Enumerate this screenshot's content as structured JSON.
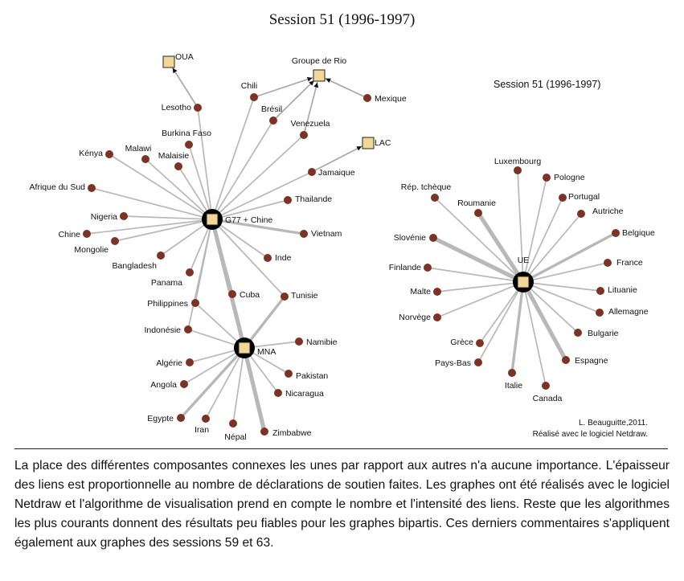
{
  "title": "Session 51 (1996-1997)",
  "inner_title": "Session 51 (1996-1997)",
  "credits": [
    "L. Beauguitte,2011.",
    "Réalisé avec le logiciel Netdraw."
  ],
  "caption": "La place des différentes composantes connexes les unes par rapport aux autres n'a aucune importance. L'épaisseur des liens est proportionnelle au nombre de déclarations de soutien faites. Les graphes ont été réalisés avec le logiciel Netdraw et l'algorithme de visualisation prend en compte le nombre et l'intensité des liens. Reste que les algorithmes les plus courants donnent des résultats peu fiables pour les graphes bipartis. Ces derniers commentaires s'appliquent également aux graphes des sessions 59 et 63.",
  "colors": {
    "country": "#7a3324",
    "group_fill": "#f2d898",
    "edge": "#b8b8b8",
    "hub": "#000000"
  },
  "nodes": [
    {
      "id": "G77",
      "label": "G77 + Chine",
      "type": "group"
    },
    {
      "id": "MNA",
      "label": "MNA",
      "type": "group"
    },
    {
      "id": "UE",
      "label": "UE",
      "type": "group"
    },
    {
      "id": "OUA",
      "label": "OUA",
      "type": "group"
    },
    {
      "id": "GRIO",
      "label": "Groupe de Rio",
      "type": "group"
    },
    {
      "id": "LAC",
      "label": "LAC",
      "type": "group"
    },
    {
      "id": "lesotho",
      "label": "Lesotho",
      "type": "country"
    },
    {
      "id": "chili",
      "label": "Chili",
      "type": "country"
    },
    {
      "id": "bresil",
      "label": "Brésil",
      "type": "country"
    },
    {
      "id": "venezuela",
      "label": "Venezuela",
      "type": "country"
    },
    {
      "id": "mexique",
      "label": "Mexique",
      "type": "country"
    },
    {
      "id": "burkina",
      "label": "Burkina Faso",
      "type": "country"
    },
    {
      "id": "kenya",
      "label": "Kénya",
      "type": "country"
    },
    {
      "id": "malawi",
      "label": "Malawi",
      "type": "country"
    },
    {
      "id": "malaisie",
      "label": "Malaisie",
      "type": "country"
    },
    {
      "id": "jamaique",
      "label": "Jamaique",
      "type": "country"
    },
    {
      "id": "afsud",
      "label": "Afrique du Sud",
      "type": "country"
    },
    {
      "id": "thailande",
      "label": "Thailande",
      "type": "country"
    },
    {
      "id": "nigeria",
      "label": "Nigeria",
      "type": "country"
    },
    {
      "id": "chine",
      "label": "Chine",
      "type": "country"
    },
    {
      "id": "vietnam",
      "label": "Vietnam",
      "type": "country"
    },
    {
      "id": "mongolie",
      "label": "Mongolie",
      "type": "country"
    },
    {
      "id": "inde",
      "label": "Inde",
      "type": "country"
    },
    {
      "id": "bangladesh",
      "label": "Bangladesh",
      "type": "country"
    },
    {
      "id": "panama",
      "label": "Panama",
      "type": "country"
    },
    {
      "id": "cuba",
      "label": "Cuba",
      "type": "country"
    },
    {
      "id": "tunisie",
      "label": "Tunisie",
      "type": "country"
    },
    {
      "id": "philippines",
      "label": "Philippines",
      "type": "country"
    },
    {
      "id": "indonesie",
      "label": "Indonésie",
      "type": "country"
    },
    {
      "id": "namibie",
      "label": "Namibie",
      "type": "country"
    },
    {
      "id": "algerie",
      "label": "Algérie",
      "type": "country"
    },
    {
      "id": "pakistan",
      "label": "Pakistan",
      "type": "country"
    },
    {
      "id": "angola",
      "label": "Angola",
      "type": "country"
    },
    {
      "id": "nicaragua",
      "label": "Nicaragua",
      "type": "country"
    },
    {
      "id": "egypte",
      "label": "Egypte",
      "type": "country"
    },
    {
      "id": "iran",
      "label": "Iran",
      "type": "country"
    },
    {
      "id": "nepal",
      "label": "Népal",
      "type": "country"
    },
    {
      "id": "zimbabwe",
      "label": "Zimbabwe",
      "type": "country"
    },
    {
      "id": "luxembourg",
      "label": "Luxembourg",
      "type": "country"
    },
    {
      "id": "pologne",
      "label": "Pologne",
      "type": "country"
    },
    {
      "id": "reptcheque",
      "label": "Rép. tchèque",
      "type": "country"
    },
    {
      "id": "portugal",
      "label": "Portugal",
      "type": "country"
    },
    {
      "id": "roumanie",
      "label": "Roumanie",
      "type": "country"
    },
    {
      "id": "autriche",
      "label": "Autriche",
      "type": "country"
    },
    {
      "id": "belgique",
      "label": "Belgique",
      "type": "country"
    },
    {
      "id": "slovenie",
      "label": "Slovénie",
      "type": "country"
    },
    {
      "id": "france",
      "label": "France",
      "type": "country"
    },
    {
      "id": "finlande",
      "label": "Finlande",
      "type": "country"
    },
    {
      "id": "malte",
      "label": "Malte",
      "type": "country"
    },
    {
      "id": "lituanie",
      "label": "Lituanie",
      "type": "country"
    },
    {
      "id": "allemagne",
      "label": "Allemagne",
      "type": "country"
    },
    {
      "id": "norvege",
      "label": "Norvège",
      "type": "country"
    },
    {
      "id": "bulgarie",
      "label": "Bulgarie",
      "type": "country"
    },
    {
      "id": "grece",
      "label": "Grèce",
      "type": "country"
    },
    {
      "id": "paysbas",
      "label": "Pays-Bas",
      "type": "country"
    },
    {
      "id": "espagne",
      "label": "Espagne",
      "type": "country"
    },
    {
      "id": "italie",
      "label": "Italie",
      "type": "country"
    },
    {
      "id": "canada",
      "label": "Canada",
      "type": "country"
    }
  ],
  "edges": [
    {
      "source": "lesotho",
      "target": "OUA",
      "weight": 1
    },
    {
      "source": "chili",
      "target": "GRIO",
      "weight": 1
    },
    {
      "source": "bresil",
      "target": "GRIO",
      "weight": 1
    },
    {
      "source": "venezuela",
      "target": "GRIO",
      "weight": 1
    },
    {
      "source": "mexique",
      "target": "GRIO",
      "weight": 1
    },
    {
      "source": "jamaique",
      "target": "LAC",
      "weight": 1
    },
    {
      "source": "lesotho",
      "target": "G77",
      "weight": 1
    },
    {
      "source": "chili",
      "target": "G77",
      "weight": 1
    },
    {
      "source": "bresil",
      "target": "G77",
      "weight": 1
    },
    {
      "source": "venezuela",
      "target": "G77",
      "weight": 1
    },
    {
      "source": "burkina",
      "target": "G77",
      "weight": 1
    },
    {
      "source": "kenya",
      "target": "G77",
      "weight": 1
    },
    {
      "source": "malawi",
      "target": "G77",
      "weight": 1
    },
    {
      "source": "malaisie",
      "target": "G77",
      "weight": 1
    },
    {
      "source": "jamaique",
      "target": "G77",
      "weight": 1
    },
    {
      "source": "afsud",
      "target": "G77",
      "weight": 1
    },
    {
      "source": "thailande",
      "target": "G77",
      "weight": 1
    },
    {
      "source": "nigeria",
      "target": "G77",
      "weight": 1
    },
    {
      "source": "chine",
      "target": "G77",
      "weight": 1
    },
    {
      "source": "vietnam",
      "target": "G77",
      "weight": 2
    },
    {
      "source": "mongolie",
      "target": "G77",
      "weight": 1
    },
    {
      "source": "inde",
      "target": "G77",
      "weight": 1
    },
    {
      "source": "bangladesh",
      "target": "G77",
      "weight": 1
    },
    {
      "source": "panama",
      "target": "G77",
      "weight": 1
    },
    {
      "source": "cuba",
      "target": "G77",
      "weight": 2
    },
    {
      "source": "tunisie",
      "target": "G77",
      "weight": 1
    },
    {
      "source": "philippines",
      "target": "G77",
      "weight": 1
    },
    {
      "source": "indonesie",
      "target": "G77",
      "weight": 1
    },
    {
      "source": "G77",
      "target": "MNA",
      "weight": 3
    },
    {
      "source": "cuba",
      "target": "MNA",
      "weight": 1
    },
    {
      "source": "tunisie",
      "target": "MNA",
      "weight": 2
    },
    {
      "source": "philippines",
      "target": "MNA",
      "weight": 1
    },
    {
      "source": "indonesie",
      "target": "MNA",
      "weight": 1
    },
    {
      "source": "namibie",
      "target": "MNA",
      "weight": 1
    },
    {
      "source": "algerie",
      "target": "MNA",
      "weight": 1
    },
    {
      "source": "pakistan",
      "target": "MNA",
      "weight": 1
    },
    {
      "source": "angola",
      "target": "MNA",
      "weight": 1
    },
    {
      "source": "nicaragua",
      "target": "MNA",
      "weight": 1
    },
    {
      "source": "egypte",
      "target": "MNA",
      "weight": 2
    },
    {
      "source": "iran",
      "target": "MNA",
      "weight": 1
    },
    {
      "source": "nepal",
      "target": "MNA",
      "weight": 1
    },
    {
      "source": "zimbabwe",
      "target": "MNA",
      "weight": 3
    },
    {
      "source": "luxembourg",
      "target": "UE",
      "weight": 1
    },
    {
      "source": "pologne",
      "target": "UE",
      "weight": 1
    },
    {
      "source": "reptcheque",
      "target": "UE",
      "weight": 1
    },
    {
      "source": "portugal",
      "target": "UE",
      "weight": 1
    },
    {
      "source": "roumanie",
      "target": "UE",
      "weight": 3
    },
    {
      "source": "autriche",
      "target": "UE",
      "weight": 1
    },
    {
      "source": "belgique",
      "target": "UE",
      "weight": 2
    },
    {
      "source": "slovenie",
      "target": "UE",
      "weight": 3
    },
    {
      "source": "france",
      "target": "UE",
      "weight": 1
    },
    {
      "source": "finlande",
      "target": "UE",
      "weight": 1
    },
    {
      "source": "malte",
      "target": "UE",
      "weight": 1
    },
    {
      "source": "lituanie",
      "target": "UE",
      "weight": 1
    },
    {
      "source": "allemagne",
      "target": "UE",
      "weight": 1
    },
    {
      "source": "norvege",
      "target": "UE",
      "weight": 1
    },
    {
      "source": "bulgarie",
      "target": "UE",
      "weight": 1
    },
    {
      "source": "grece",
      "target": "UE",
      "weight": 1
    },
    {
      "source": "paysbas",
      "target": "UE",
      "weight": 1
    },
    {
      "source": "espagne",
      "target": "UE",
      "weight": 3
    },
    {
      "source": "italie",
      "target": "UE",
      "weight": 2
    },
    {
      "source": "canada",
      "target": "UE",
      "weight": 1
    }
  ]
}
